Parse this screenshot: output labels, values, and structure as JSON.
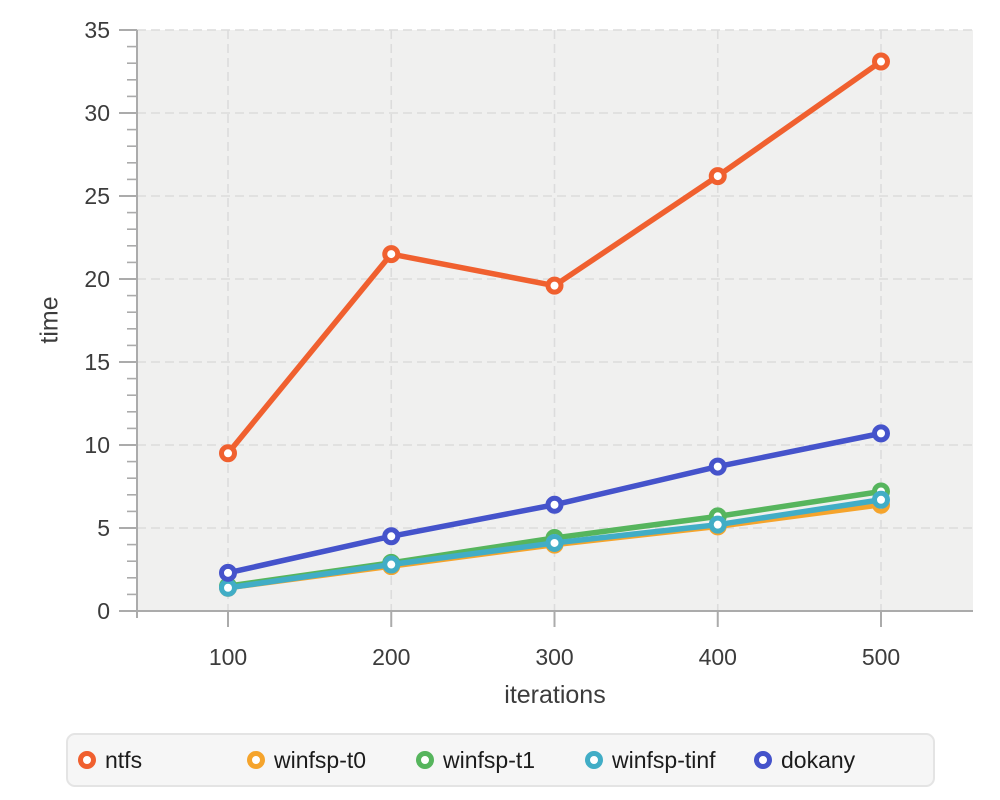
{
  "chart_data": {
    "type": "line",
    "x": [
      100,
      200,
      300,
      400,
      500
    ],
    "x_tick_labels": [
      "100",
      "200",
      "300",
      "400",
      "500"
    ],
    "y_ticks": [
      0,
      5,
      10,
      15,
      20,
      25,
      30,
      35
    ],
    "ylim": [
      0,
      35
    ],
    "xlabel": "iterations",
    "ylabel": "time",
    "title": "",
    "grid": "dashed",
    "legend_position": "bottom",
    "series": [
      {
        "name": "ntfs",
        "color": "#F0602F",
        "values": [
          9.5,
          21.5,
          19.6,
          26.2,
          33.1
        ]
      },
      {
        "name": "winfsp-t0",
        "color": "#F5A42C",
        "values": [
          1.4,
          2.7,
          4.0,
          5.1,
          6.4
        ]
      },
      {
        "name": "winfsp-t1",
        "color": "#56B55D",
        "values": [
          1.5,
          2.9,
          4.4,
          5.7,
          7.2
        ]
      },
      {
        "name": "winfsp-tinf",
        "color": "#41ADC6",
        "values": [
          1.4,
          2.8,
          4.1,
          5.2,
          6.7
        ]
      },
      {
        "name": "dokany",
        "color": "#4553CB",
        "values": [
          2.3,
          4.5,
          6.4,
          8.7,
          10.7
        ]
      }
    ]
  },
  "style": {
    "plot_bg": "#F0F0EF",
    "grid_color": "#DCDCDC",
    "axis_color": "#ABABAB",
    "tick_label_color": "#3C3C3C",
    "legend_bg": "#F6F6F6",
    "legend_border": "#E4E4E4",
    "legend_text": "#1C1C1C",
    "marker_fill": "#FFFFFF"
  }
}
